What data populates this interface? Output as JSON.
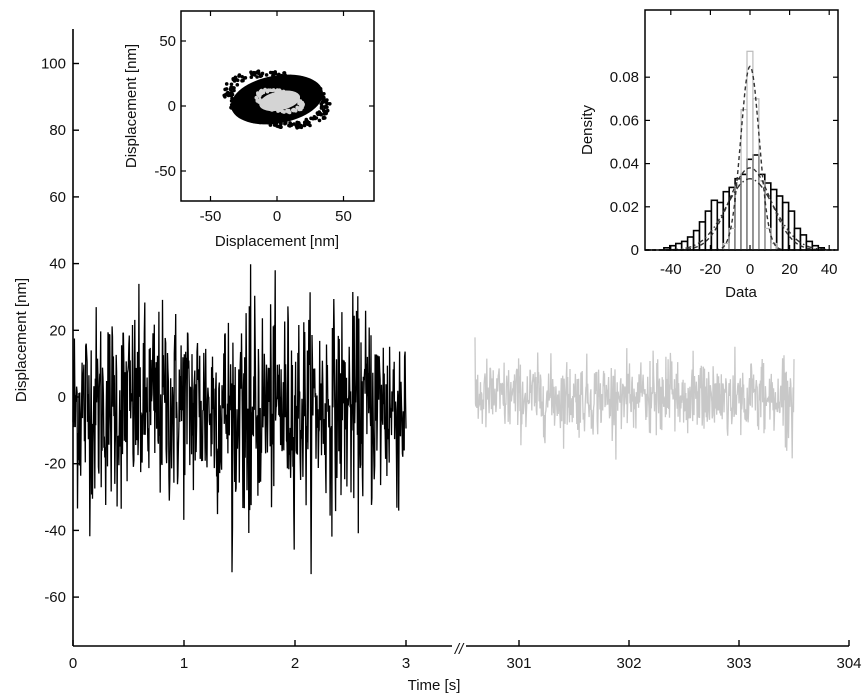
{
  "chart_data": [
    {
      "id": "main",
      "type": "line",
      "xlabel": "Time [s]",
      "ylabel": "Displacement [nm]",
      "ylim": [
        -75,
        110
      ],
      "broken_x_axis": true,
      "axis_break_marker": "//",
      "xticks_left": [
        "0",
        "1",
        "2",
        "3"
      ],
      "xticks_right": [
        "301",
        "302",
        "303",
        "304"
      ],
      "yticks": [
        "-60",
        "-40",
        "-20",
        "0",
        "20",
        "40",
        "60",
        "80",
        "100"
      ],
      "series": [
        {
          "color": "#000000",
          "x_range": [
            0,
            3
          ],
          "center": -3,
          "typical_range": [
            -35,
            30
          ],
          "extremes": [
            -54,
            40
          ]
        },
        {
          "color": "#c8c8c8",
          "x_range": [
            300.6,
            303.5
          ],
          "center": 0,
          "typical_range": [
            -12,
            12
          ],
          "extremes": [
            -20,
            18
          ]
        }
      ]
    },
    {
      "id": "inset_scatter",
      "type": "scatter",
      "xlabel": "Displacement [nm]",
      "ylabel": "Displacement [nm]",
      "xlim": [
        -72,
        72
      ],
      "ylim": [
        -72,
        75
      ],
      "xticks": [
        "-50",
        "0",
        "50"
      ],
      "yticks": [
        "-50",
        "0",
        "50"
      ],
      "clusters": [
        {
          "color": "#000000",
          "center": [
            0,
            5
          ],
          "spread": [
            38,
            20
          ],
          "tilt_deg": -10
        },
        {
          "color": "#d4d4d4",
          "center": [
            2,
            4
          ],
          "spread": [
            17,
            8
          ],
          "tilt_deg": -12
        }
      ]
    },
    {
      "id": "inset_histogram",
      "type": "bar",
      "xlabel": "Data",
      "ylabel": "Density",
      "xlim": [
        -53,
        43
      ],
      "ylim": [
        0,
        0.095
      ],
      "xticks": [
        "-40",
        "-20",
        "0",
        "20",
        "40"
      ],
      "yticks": [
        "0",
        "0.02",
        "0.04",
        "0.06",
        "0.08"
      ],
      "bin_width": 3,
      "wide_hist": {
        "color": "#000000",
        "bins": [
          [
            -42,
            0.001
          ],
          [
            -39,
            0.002
          ],
          [
            -36,
            0.003
          ],
          [
            -33,
            0.004
          ],
          [
            -30,
            0.006
          ],
          [
            -27,
            0.009
          ],
          [
            -24,
            0.013
          ],
          [
            -21,
            0.018
          ],
          [
            -18,
            0.023
          ],
          [
            -15,
            0.022
          ],
          [
            -12,
            0.027
          ],
          [
            -9,
            0.029
          ],
          [
            -6,
            0.033
          ],
          [
            -3,
            0.035
          ],
          [
            0,
            0.042
          ],
          [
            3,
            0.044
          ],
          [
            6,
            0.035
          ],
          [
            9,
            0.031
          ],
          [
            12,
            0.028
          ],
          [
            15,
            0.025
          ],
          [
            18,
            0.022
          ],
          [
            21,
            0.018
          ],
          [
            24,
            0.01
          ],
          [
            27,
            0.007
          ],
          [
            30,
            0.004
          ],
          [
            33,
            0.002
          ],
          [
            36,
            0.001
          ]
        ]
      },
      "narrow_hist": {
        "color": "#bbbbbb",
        "bins": [
          [
            -12,
            0.003
          ],
          [
            -9,
            0.01
          ],
          [
            -6,
            0.03
          ],
          [
            -3,
            0.065
          ],
          [
            0,
            0.092
          ],
          [
            3,
            0.07
          ],
          [
            6,
            0.032
          ],
          [
            9,
            0.01
          ],
          [
            12,
            0.003
          ]
        ]
      },
      "fits": [
        {
          "style": "dashed",
          "color": "#333333",
          "mean": 0,
          "std": 4.7,
          "peak": 0.085
        },
        {
          "style": "dashed",
          "color": "#333333",
          "mean": 0,
          "std": 10.5,
          "peak": 0.038
        },
        {
          "style": "dash-dot",
          "color": "#333333",
          "mean": 0,
          "std": 12.0,
          "peak": 0.033
        }
      ]
    }
  ]
}
